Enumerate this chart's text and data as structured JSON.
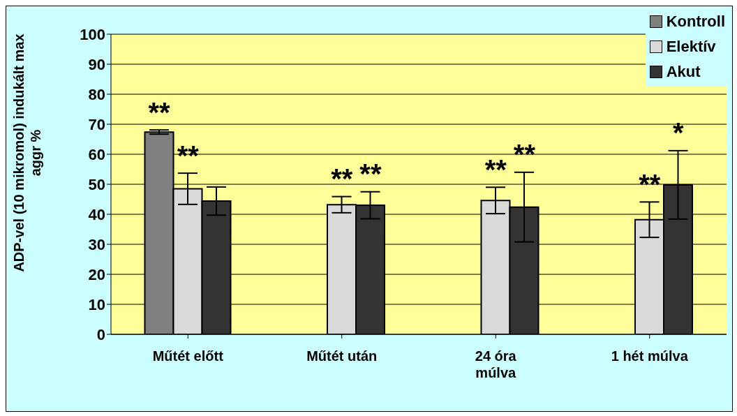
{
  "chart_data": {
    "type": "bar",
    "ylabel": "ADP-vel (10 mikromol) indukált max aggr %",
    "categories": [
      "Műtét előtt",
      "Műtét után",
      "24 óra múlva",
      "1 hét múlva"
    ],
    "series": [
      {
        "name": "Kontroll",
        "color": "#7f7f7f",
        "values": [
          67.4,
          null,
          null,
          null
        ],
        "errors": [
          0.7,
          null,
          null,
          null
        ],
        "value_labels": [
          "**",
          null,
          null,
          null
        ]
      },
      {
        "name": "Elektív",
        "color": "#d9d9d9",
        "values": [
          48.5,
          43.2,
          44.6,
          38.2
        ],
        "errors": [
          5.2,
          2.7,
          4.4,
          5.9
        ],
        "value_labels": [
          "**",
          "**",
          "**",
          "**"
        ]
      },
      {
        "name": "Akut",
        "color": "#333333",
        "values": [
          44.4,
          43,
          42.4,
          49.8
        ],
        "errors": [
          4.7,
          4.5,
          11.6,
          11.4
        ],
        "value_labels": [
          null,
          "**",
          "**",
          "*"
        ]
      }
    ],
    "ylim": [
      0,
      100
    ],
    "yticks": [
      0,
      10,
      20,
      30,
      40,
      50,
      60,
      70,
      80,
      90,
      100
    ],
    "grid": "y",
    "legend": "top right"
  }
}
